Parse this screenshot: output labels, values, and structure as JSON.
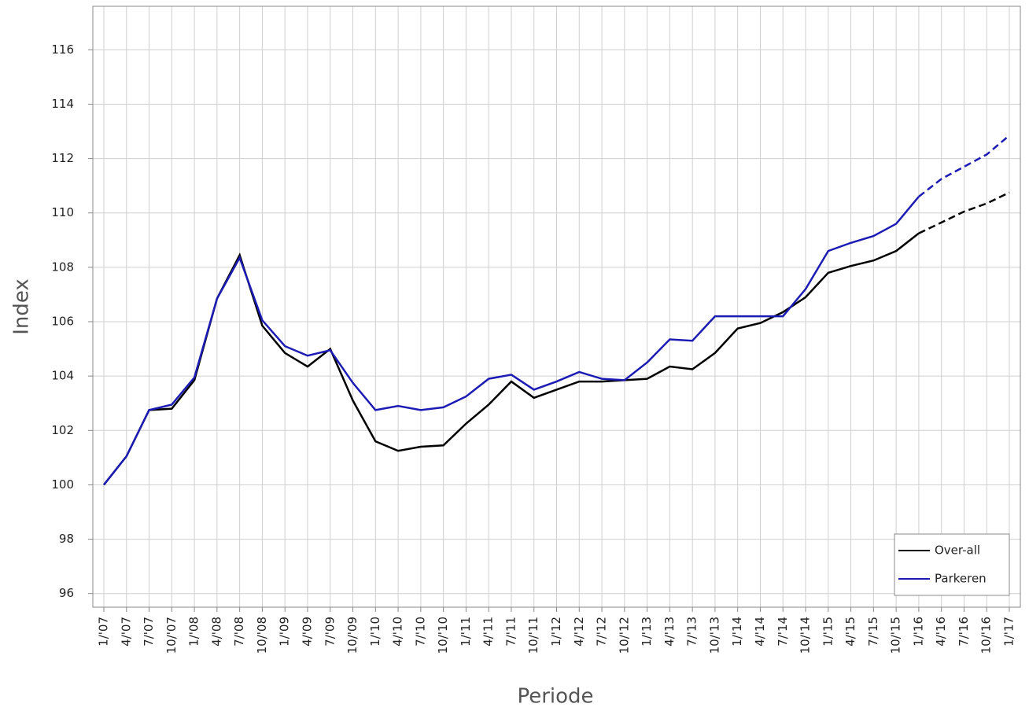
{
  "chart_data": {
    "type": "line",
    "x_label": "Periode",
    "y_label": "Index",
    "categories": [
      "1/'07",
      "4/'07",
      "7/'07",
      "10/'07",
      "1/'08",
      "4/'08",
      "7/'08",
      "10/'08",
      "1/'09",
      "4/'09",
      "7/'09",
      "10/'09",
      "1/'10",
      "4/'10",
      "7/'10",
      "10/'10",
      "1/'11",
      "4/'11",
      "7/'11",
      "10/'11",
      "1/'12",
      "4/'12",
      "7/'12",
      "10/'12",
      "1/'13",
      "4/'13",
      "7/'13",
      "10/'13",
      "1/'14",
      "4/'14",
      "7/'14",
      "10/'14",
      "1/'15",
      "4/'15",
      "7/'15",
      "10/'15",
      "1/'16",
      "4/'16",
      "7/'16",
      "10/'16",
      "1/'17"
    ],
    "series": [
      {
        "name": "Over-all",
        "color": "#000000",
        "values": [
          100,
          101.05,
          102.75,
          102.8,
          103.85,
          106.85,
          108.45,
          105.85,
          104.85,
          104.35,
          105.0,
          103.1,
          101.6,
          101.25,
          101.4,
          101.45,
          102.25,
          102.95,
          103.8,
          103.2,
          103.5,
          103.8,
          103.8,
          103.85,
          103.9,
          104.35,
          104.25,
          104.85,
          105.75,
          105.95,
          106.35,
          106.9,
          107.8,
          108.05,
          108.25,
          108.6,
          109.25,
          109.65,
          110.05,
          110.35,
          110.75
        ]
      },
      {
        "name": "Parkeren",
        "color": "#1c1cb4",
        "values": [
          100,
          101.05,
          102.75,
          102.95,
          103.95,
          106.85,
          108.35,
          106.05,
          105.1,
          104.75,
          104.95,
          103.75,
          102.75,
          102.9,
          102.75,
          102.85,
          103.25,
          103.9,
          104.05,
          103.5,
          103.8,
          104.15,
          103.9,
          103.85,
          104.5,
          105.35,
          105.3,
          106.2,
          106.2,
          106.2,
          106.2,
          107.2,
          108.6,
          108.9,
          109.15,
          109.6,
          110.6,
          111.25,
          111.7,
          112.15,
          112.85
        ]
      }
    ],
    "dashed_from_index": 36,
    "ylim": [
      95.5,
      117.6
    ],
    "yticks": [
      96,
      98,
      100,
      102,
      104,
      106,
      108,
      110,
      112,
      114,
      116
    ],
    "grid": true,
    "legend": "bottom-right"
  }
}
